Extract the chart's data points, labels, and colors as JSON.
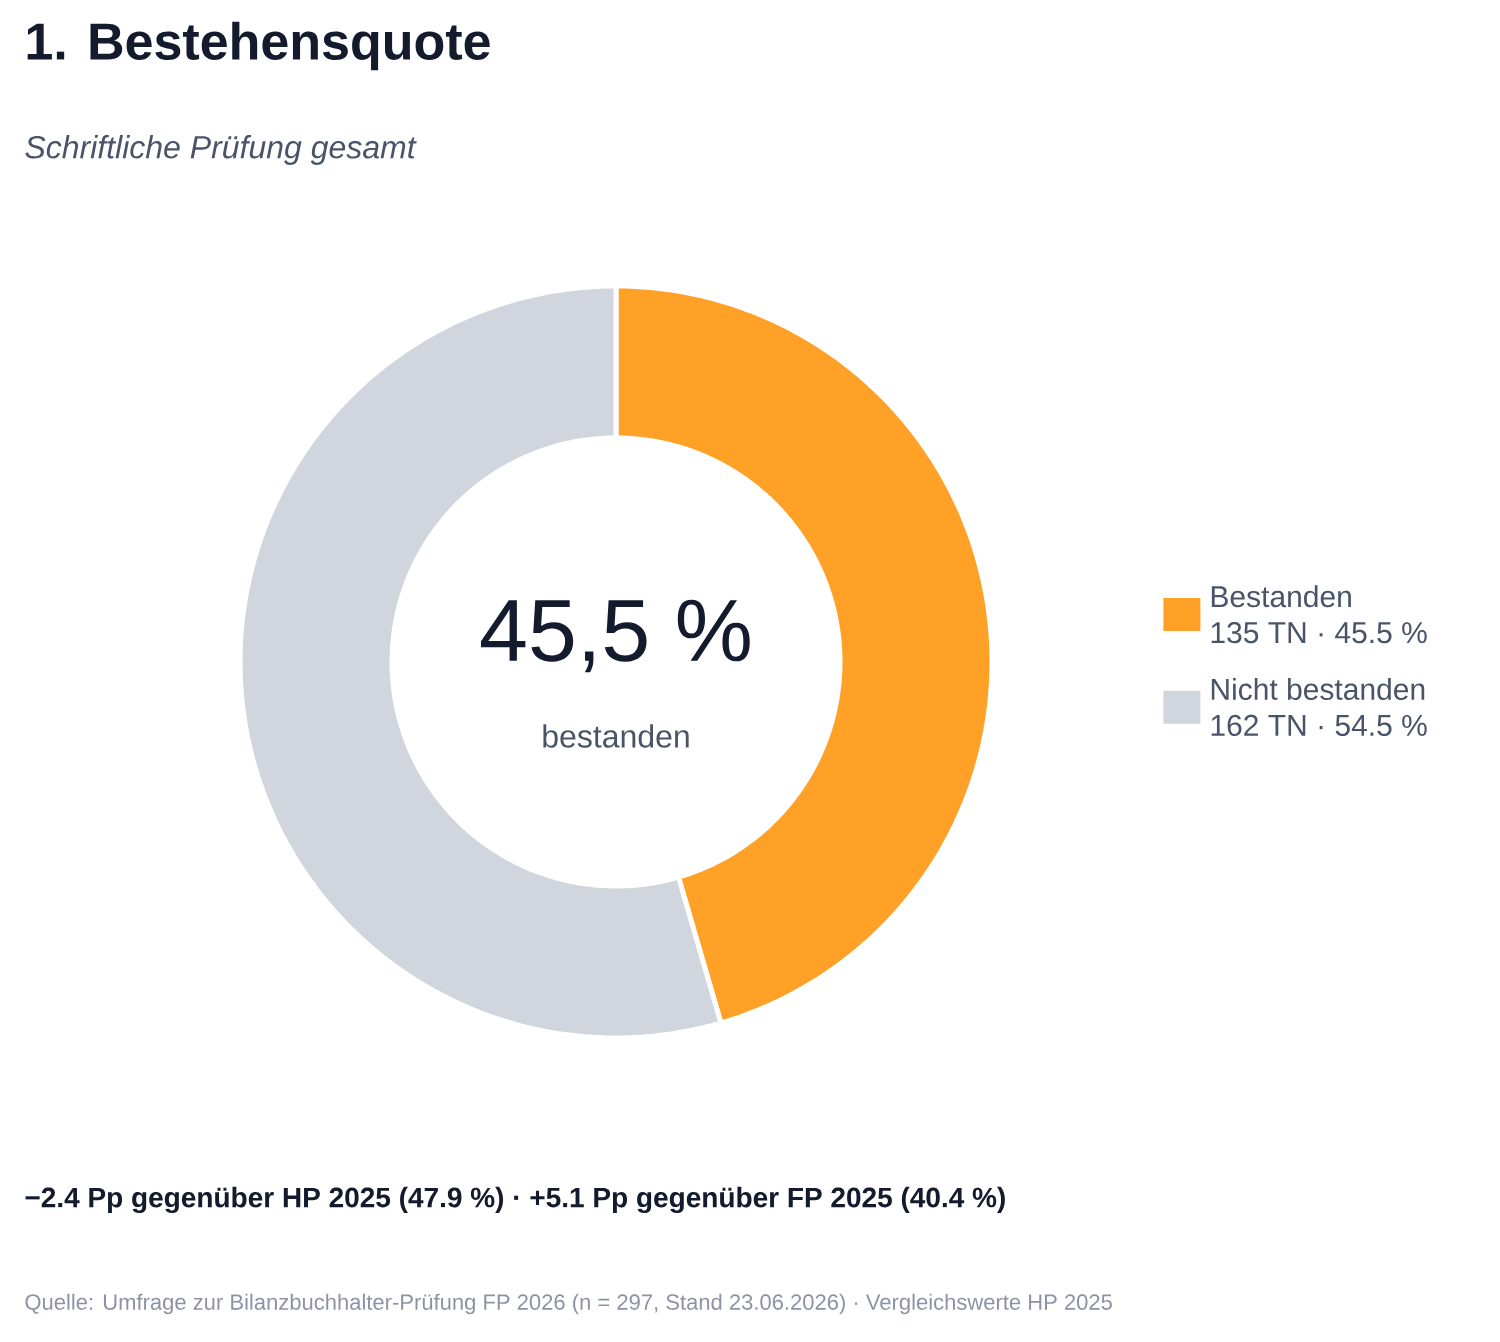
{
  "chart_data": {
    "type": "donut",
    "title": "1. Bestehensquote",
    "subtitle": "Schriftliche Prüfung gesamt",
    "categories": [
      "Bestanden",
      "Nicht bestanden"
    ],
    "values": [
      45.5,
      54.5
    ],
    "colors": [
      "#ffa126",
      "#d1d5de"
    ],
    "value_labels": [
      "135 TN · 45.5 %",
      "162 TN · 54.5 %"
    ],
    "legend": "right",
    "annotations": [
      "45,5 %",
      "bestanden",
      "−2.4 Pp gegenüber HP 2025 (47.9 %)  ·  +5.1 Pp gegenüber FP 2025 (40.4 %)",
      "Quelle: Umfrage zur Bilanzbuchhalter-Prüfung FP 2026 (n = 297, Stand 23.06.2026) · Vergleichswerte HP 2025"
    ]
  }
}
